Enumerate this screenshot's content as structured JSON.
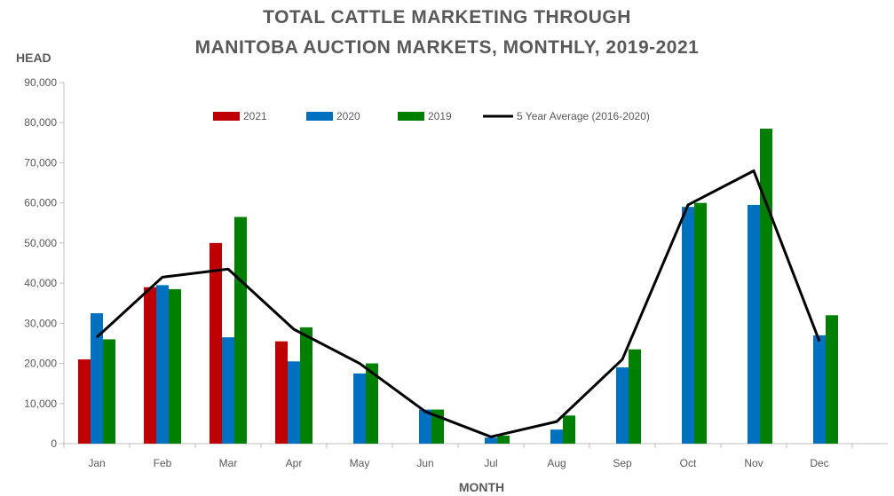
{
  "chart_data": {
    "type": "bar",
    "title_line1": "TOTAL CATTLE MARKETING THROUGH",
    "title_line2": "MANITOBA AUCTION MARKETS, MONTHLY, 2019-2021",
    "ylabel": "HEAD",
    "xlabel": "MONTH",
    "ylim": [
      0,
      90000
    ],
    "yticks": [
      0,
      10000,
      20000,
      30000,
      40000,
      50000,
      60000,
      70000,
      80000,
      90000
    ],
    "ytick_labels": [
      "0",
      "10,000",
      "20,000",
      "30,000",
      "40,000",
      "50,000",
      "60,000",
      "70,000",
      "80,000",
      "90,000"
    ],
    "categories": [
      "Jan",
      "Feb",
      "Mar",
      "Apr",
      "May",
      "Jun",
      "Jul",
      "Aug",
      "Sep",
      "Oct",
      "Nov",
      "Dec"
    ],
    "legend_position": "top",
    "series": [
      {
        "name": "2021",
        "kind": "bar",
        "color": "#c00000",
        "values": [
          21000,
          39000,
          50000,
          25500,
          null,
          null,
          null,
          null,
          null,
          null,
          null,
          null
        ]
      },
      {
        "name": "2020",
        "kind": "bar",
        "color": "#0070c0",
        "values": [
          32500,
          39500,
          26500,
          20500,
          17500,
          8500,
          1500,
          3500,
          19000,
          59000,
          59500,
          27000
        ]
      },
      {
        "name": "2019",
        "kind": "bar",
        "color": "#008000",
        "values": [
          26000,
          38500,
          56500,
          29000,
          20000,
          8500,
          2000,
          7000,
          23500,
          60000,
          78500,
          32000
        ]
      },
      {
        "name": "5 Year Average (2016-2020)",
        "kind": "line",
        "color": "#000000",
        "values": [
          26500,
          41500,
          43500,
          28500,
          20000,
          8000,
          1700,
          5500,
          21000,
          59500,
          68000,
          25500
        ]
      }
    ]
  }
}
